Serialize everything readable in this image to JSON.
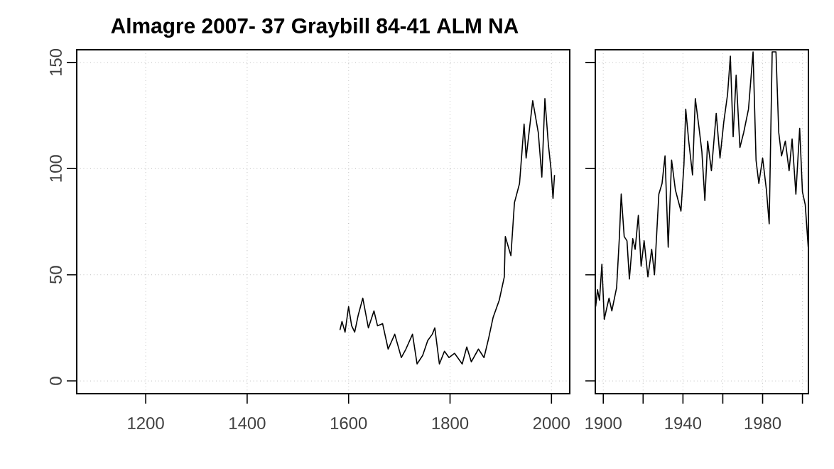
{
  "chart_data": [
    {
      "type": "line",
      "title": "Almagre 2007- 37 Graybill  84-41 ALM  NA",
      "xlim": [
        1064,
        2036
      ],
      "ylim": [
        -6,
        156
      ],
      "xticks": [
        1200,
        1400,
        1600,
        1800,
        2000
      ],
      "yticks": [
        0,
        50,
        100,
        150
      ],
      "grid": true,
      "marker": "none",
      "line_style": "solid",
      "series": [
        {
          "color": "#000000",
          "x": [
            1583,
            1587,
            1593,
            1600,
            1606,
            1612,
            1619,
            1628,
            1639,
            1650,
            1657,
            1667,
            1678,
            1691,
            1704,
            1713,
            1726,
            1735,
            1746,
            1756,
            1765,
            1770,
            1779,
            1789,
            1798,
            1809,
            1824,
            1833,
            1842,
            1856,
            1867,
            1876,
            1885,
            1897,
            1907,
            1909,
            1920,
            1927,
            1937,
            1946,
            1950,
            1963,
            1974,
            1981,
            1987,
            1994,
            1999,
            2003,
            2006
          ],
          "values": [
            24,
            28,
            23,
            35,
            26,
            23,
            31,
            39,
            25,
            33,
            26,
            27,
            15,
            22,
            11,
            15,
            22,
            8,
            12,
            19,
            22,
            25,
            8,
            14,
            11,
            13,
            8,
            16,
            9,
            15,
            11,
            20,
            30,
            38,
            49,
            68,
            59,
            84,
            93,
            121,
            105,
            132,
            117,
            96,
            133,
            111,
            100,
            86,
            97
          ]
        }
      ]
    },
    {
      "type": "line",
      "xlim": [
        1896,
        2003
      ],
      "ylim": [
        -6,
        156
      ],
      "xticks": [
        1900,
        {
          "value": 1920,
          "label": null
        },
        1940,
        {
          "value": 1960,
          "label": null
        },
        1980,
        {
          "value": 2000,
          "label": null
        }
      ],
      "yticks": [
        0,
        50,
        100,
        150
      ],
      "tick_labels": "x",
      "grid": true,
      "marker": "none",
      "line_style": "solid",
      "series": [
        {
          "color": "#000000",
          "x": [
            1896.2,
            1897.1,
            1898.1,
            1899.3,
            1900.5,
            1901.9,
            1902.9,
            1904.3,
            1906.7,
            1908.1,
            1909,
            1910.5,
            1911.9,
            1913.1,
            1914.8,
            1916,
            1917.6,
            1919,
            1920.5,
            1922.4,
            1924.3,
            1925.7,
            1927.9,
            1929.5,
            1931,
            1932.6,
            1934.3,
            1936.2,
            1939,
            1940.5,
            1941.4,
            1942.9,
            1944.8,
            1946.2,
            1948.1,
            1949.5,
            1951,
            1952.4,
            1954.3,
            1956.7,
            1958.6,
            1960.5,
            1962.4,
            1963.8,
            1965.2,
            1966.7,
            1968.6,
            1970.5,
            1972.9,
            1975.2,
            1976.7,
            1978.1,
            1980,
            1981.9,
            1983.3,
            1984.8,
            1986.7,
            1988.1,
            1989.5,
            1991.4,
            1993.3,
            1994.8,
            1996.7,
            1998.6,
            2000,
            2001.4,
            2002.9
          ],
          "values": [
            35,
            43,
            38,
            55,
            29,
            35,
            39,
            33,
            44,
            68,
            88,
            68,
            66,
            48,
            67,
            62,
            78,
            54,
            66,
            49,
            62,
            50,
            88,
            93,
            106,
            63,
            104,
            90,
            80,
            102,
            128,
            113,
            97,
            133,
            119,
            108,
            85,
            113,
            99,
            126,
            105,
            122,
            135,
            153,
            115,
            144,
            110,
            117,
            128,
            155,
            104,
            93,
            105,
            90,
            74,
            155,
            155,
            117,
            106,
            113,
            99,
            114,
            88,
            119,
            89,
            83,
            63
          ]
        }
      ]
    }
  ]
}
